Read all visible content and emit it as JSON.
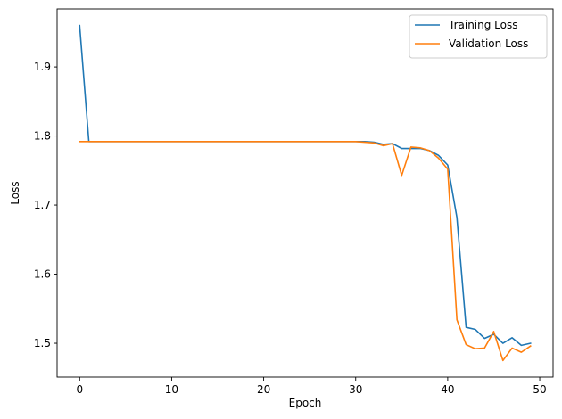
{
  "chart_data": {
    "type": "line",
    "xlabel": "Epoch",
    "ylabel": "Loss",
    "xlim": [
      -2.45,
      51.45
    ],
    "ylim": [
      1.451,
      1.984
    ],
    "xticks": [
      0,
      10,
      20,
      30,
      40,
      50
    ],
    "yticks": [
      1.5,
      1.6,
      1.7,
      1.8,
      1.9
    ],
    "grid": false,
    "legend_position": "top-right",
    "x": [
      0,
      1,
      2,
      3,
      4,
      5,
      6,
      7,
      8,
      9,
      10,
      11,
      12,
      13,
      14,
      15,
      16,
      17,
      18,
      19,
      20,
      21,
      22,
      23,
      24,
      25,
      26,
      27,
      28,
      29,
      30,
      31,
      32,
      33,
      34,
      35,
      36,
      37,
      38,
      39,
      40,
      41,
      42,
      43,
      44,
      45,
      46,
      47,
      48,
      49
    ],
    "series": [
      {
        "name": "Training Loss",
        "color": "#1f77b4",
        "values": [
          1.96,
          1.792,
          1.792,
          1.792,
          1.792,
          1.792,
          1.792,
          1.792,
          1.792,
          1.792,
          1.792,
          1.792,
          1.792,
          1.792,
          1.792,
          1.792,
          1.792,
          1.792,
          1.792,
          1.792,
          1.792,
          1.792,
          1.792,
          1.792,
          1.792,
          1.792,
          1.792,
          1.792,
          1.792,
          1.792,
          1.792,
          1.792,
          1.791,
          1.788,
          1.789,
          1.782,
          1.782,
          1.782,
          1.779,
          1.772,
          1.758,
          1.682,
          1.523,
          1.52,
          1.507,
          1.513,
          1.5,
          1.508,
          1.497,
          1.5
        ]
      },
      {
        "name": "Validation Loss",
        "color": "#ff7f0e",
        "values": [
          1.792,
          1.792,
          1.792,
          1.792,
          1.792,
          1.792,
          1.792,
          1.792,
          1.792,
          1.792,
          1.792,
          1.792,
          1.792,
          1.792,
          1.792,
          1.792,
          1.792,
          1.792,
          1.792,
          1.792,
          1.792,
          1.792,
          1.792,
          1.792,
          1.792,
          1.792,
          1.792,
          1.792,
          1.792,
          1.792,
          1.792,
          1.791,
          1.79,
          1.786,
          1.789,
          1.743,
          1.784,
          1.783,
          1.779,
          1.768,
          1.752,
          1.534,
          1.498,
          1.492,
          1.493,
          1.517,
          1.475,
          1.493,
          1.487,
          1.496
        ]
      }
    ]
  }
}
